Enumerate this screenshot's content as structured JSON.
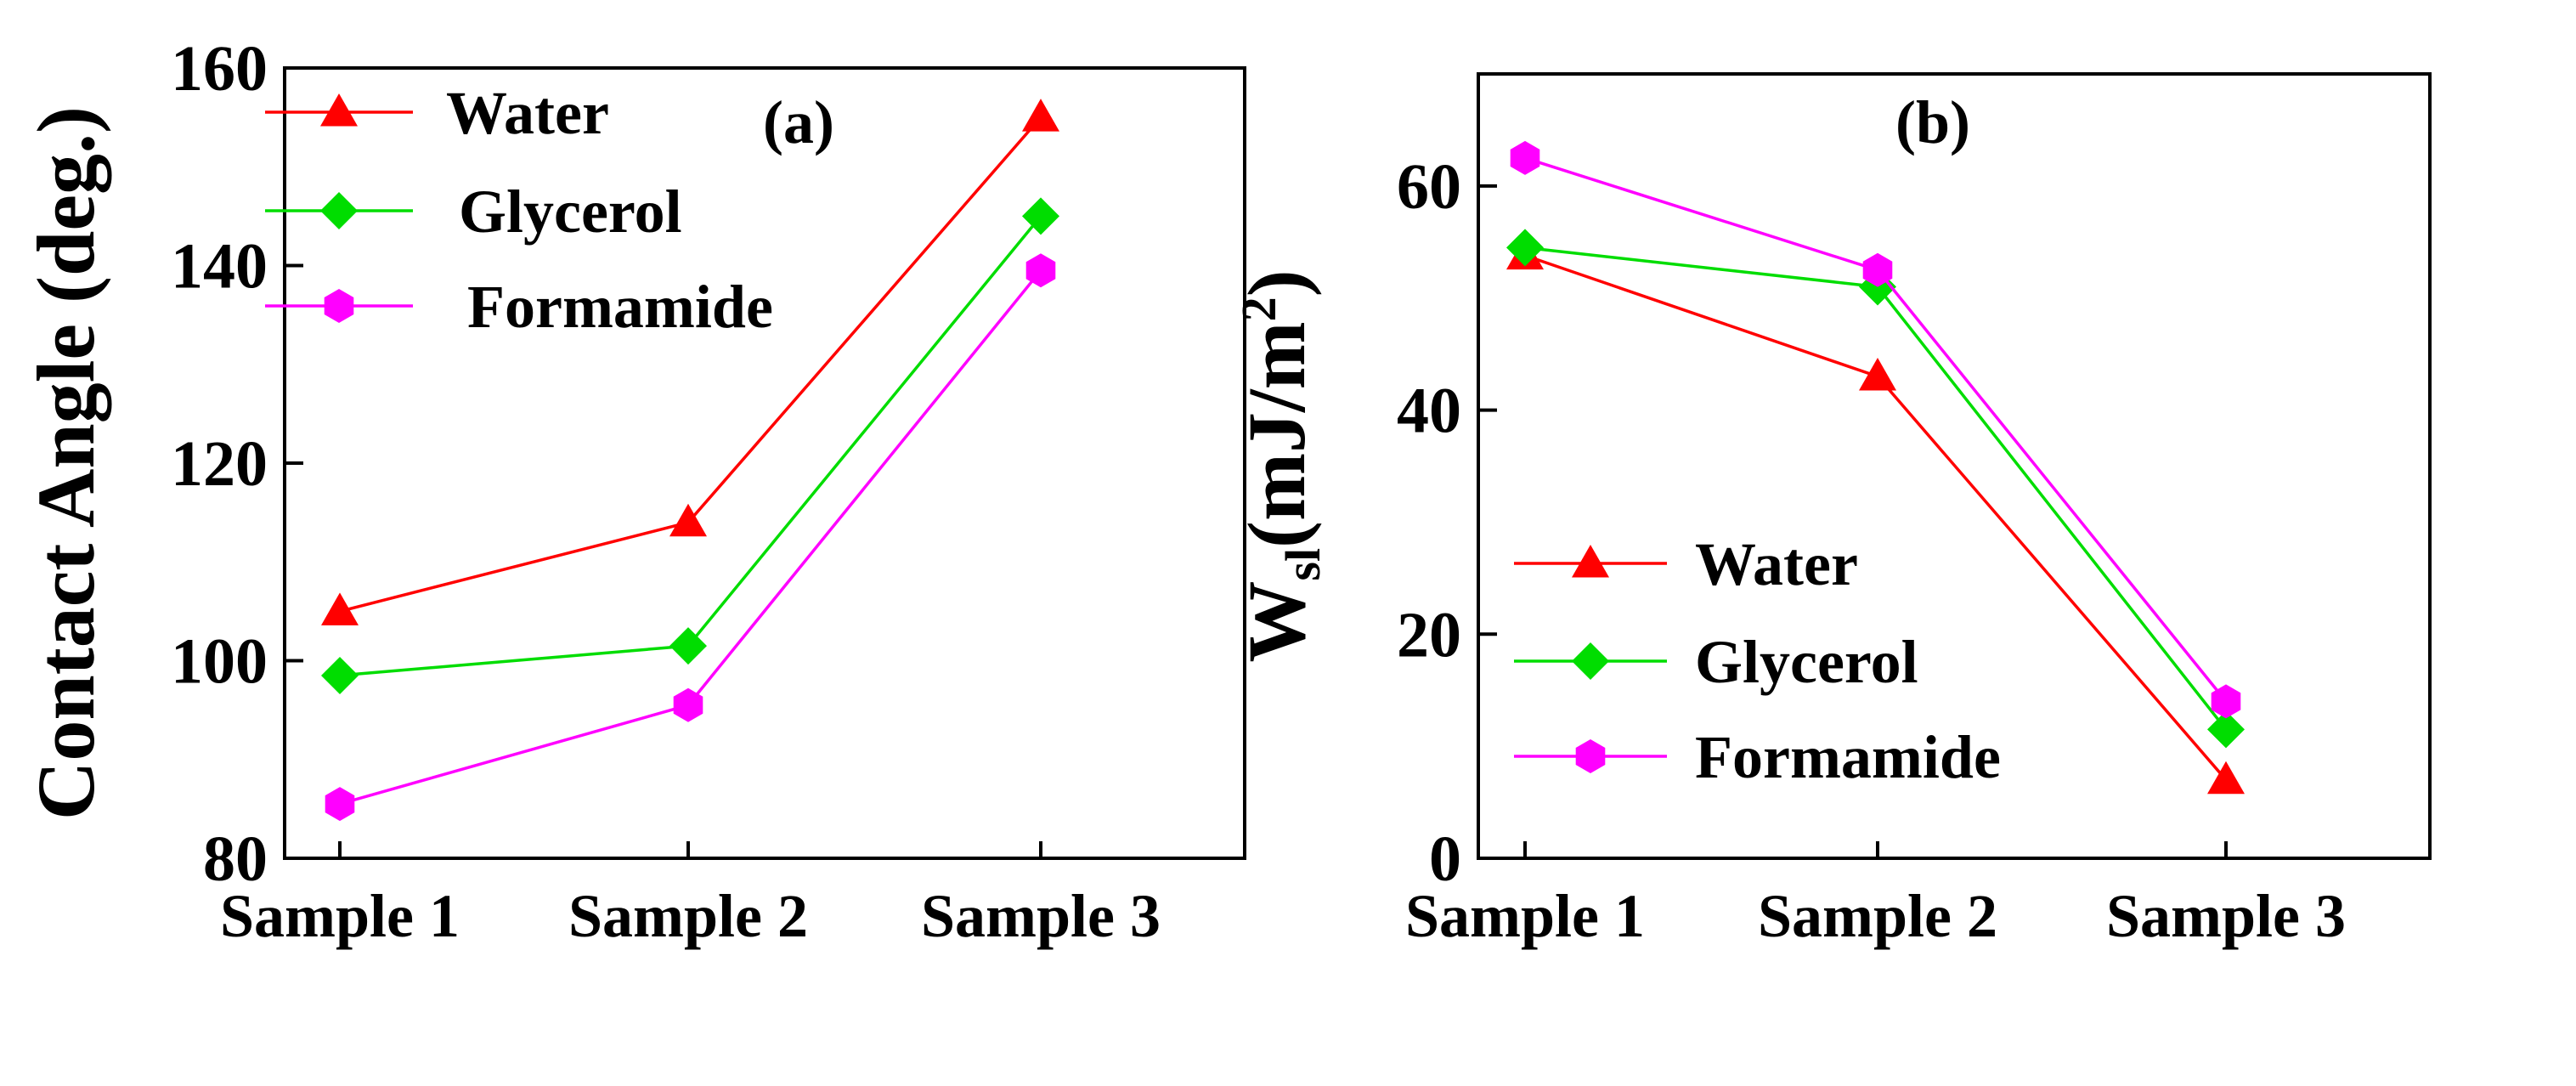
{
  "chart_data": [
    {
      "type": "line",
      "panel_label": "(a)",
      "title": "",
      "xlabel": "",
      "ylabel": "Contact Angle (deg.)",
      "ylabel_main": "",
      "ylabel_sub": "",
      "ylabel_unit": "",
      "ylim": [
        80,
        160
      ],
      "yticks": [
        80,
        100,
        120,
        140,
        160
      ],
      "categories": [
        "Sample 1",
        "Sample 2",
        "Sample 3"
      ],
      "legend_position": "top-left",
      "series": [
        {
          "name": "Water",
          "marker": "triangle",
          "color": "#ff0000",
          "values": [
            105,
            114,
            155
          ]
        },
        {
          "name": "Glycerol",
          "marker": "diamond",
          "color": "#00dd00",
          "values": [
            98.5,
            101.5,
            145
          ]
        },
        {
          "name": "Formamide",
          "marker": "hexagon",
          "color": "#ff00ff",
          "values": [
            85.5,
            95.5,
            139.5
          ]
        }
      ]
    },
    {
      "type": "line",
      "panel_label": "(b)",
      "title": "",
      "xlabel": "",
      "ylabel": "",
      "ylabel_main": "W",
      "ylabel_sub": "sl",
      "ylabel_unit": "(mJ/m",
      "ylabel_sup": "2",
      "ylabel_close": ")",
      "ylim": [
        0,
        70
      ],
      "yticks": [
        0,
        20,
        40,
        60
      ],
      "categories": [
        "Sample 1",
        "Sample 2",
        "Sample 3"
      ],
      "legend_position": "bottom-left",
      "series": [
        {
          "name": "Water",
          "marker": "triangle",
          "color": "#ff0000",
          "values": [
            53.8,
            43,
            7
          ]
        },
        {
          "name": "Glycerol",
          "marker": "diamond",
          "color": "#00dd00",
          "values": [
            54.5,
            51,
            11.5
          ]
        },
        {
          "name": "Formamide",
          "marker": "hexagon",
          "color": "#ff00ff",
          "values": [
            62.5,
            52.5,
            14
          ]
        }
      ]
    }
  ]
}
